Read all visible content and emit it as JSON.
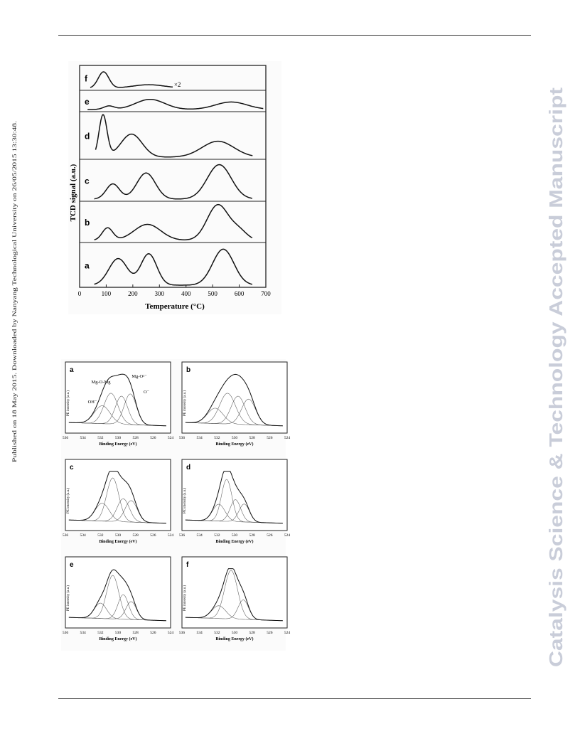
{
  "side_note": "Published on 18 May 2015. Downloaded by Nanyang Technological University on 26/05/2015 13:30:48.",
  "watermark": "Catalysis Science & Technology Accepted Manuscript",
  "watermark_color": "#c9cdd9",
  "figure_tpr": {
    "chart_data": {
      "type": "line",
      "xlabel": "Temperature (°C)",
      "ylabel": "TCD signal (a.u.)",
      "xlim": [
        0,
        700
      ],
      "xticks": [
        "0",
        "100",
        "200",
        "300",
        "400",
        "500",
        "600",
        "700"
      ],
      "panel_labels": [
        "f",
        "e",
        "d",
        "c",
        "b",
        "a"
      ],
      "annotation": "×2",
      "series": [
        {
          "name": "f",
          "peaks": [
            [
              90,
              0.85,
              20
            ],
            [
              260,
              0.18,
              60
            ]
          ],
          "range": [
            40,
            350
          ]
        },
        {
          "name": "e",
          "peaks": [
            [
              110,
              0.22,
              20
            ],
            [
              265,
              0.65,
              55
            ],
            [
              570,
              0.48,
              60
            ]
          ],
          "range": [
            30,
            690
          ]
        },
        {
          "name": "d",
          "peaks": [
            [
              88,
              1.0,
              15
            ],
            [
              195,
              0.55,
              40
            ],
            [
              520,
              0.38,
              60
            ]
          ],
          "range": [
            60,
            650
          ]
        },
        {
          "name": "c",
          "peaks": [
            [
              125,
              0.42,
              25
            ],
            [
              250,
              0.72,
              35
            ],
            [
              525,
              0.95,
              45
            ]
          ],
          "range": [
            55,
            650
          ]
        },
        {
          "name": "b",
          "peaks": [
            [
              105,
              0.35,
              20
            ],
            [
              255,
              0.45,
              50
            ],
            [
              520,
              1.0,
              40
            ],
            [
              600,
              0.25,
              30
            ]
          ],
          "range": [
            55,
            650
          ]
        },
        {
          "name": "a",
          "peaks": [
            [
              145,
              0.68,
              35
            ],
            [
              260,
              0.8,
              30
            ],
            [
              540,
              0.92,
              40
            ]
          ],
          "range": [
            55,
            650
          ]
        }
      ]
    }
  },
  "figure_xps": {
    "chart_data": [
      {
        "type": "line",
        "panel": "a",
        "xlabel": "Binding Energy (eV)",
        "ylabel": "PE intensity (a.u.)",
        "xticks": [
          "536",
          "534",
          "532",
          "530",
          "528",
          "526",
          "524"
        ],
        "annotations": [
          "Mg-O-Mg",
          "Mg-O²⁻",
          "OH⁻",
          "O⁻"
        ]
      },
      {
        "type": "line",
        "panel": "b",
        "xlabel": "Binding Energy (eV)",
        "ylabel": "PE intensity (a.u.)",
        "xticks": [
          "536",
          "534",
          "532",
          "530",
          "528",
          "526",
          "524"
        ]
      },
      {
        "type": "line",
        "panel": "c",
        "xlabel": "Binding Energy (eV)",
        "ylabel": "PE intensity (a.u.)",
        "xticks": [
          "536",
          "534",
          "532",
          "530",
          "528",
          "526",
          "524"
        ]
      },
      {
        "type": "line",
        "panel": "d",
        "xlabel": "Binding Energy (eV)",
        "ylabel": "PE intensity (a.u.)",
        "xticks": [
          "536",
          "534",
          "532",
          "530",
          "528",
          "526",
          "524"
        ]
      },
      {
        "type": "line",
        "panel": "e",
        "xlabel": "Binding Energy (eV)",
        "ylabel": "PE intensity (a.u.)",
        "xticks": [
          "536",
          "534",
          "532",
          "530",
          "528",
          "526",
          "524"
        ]
      },
      {
        "type": "line",
        "panel": "f",
        "xlabel": "Binding Energy (eV)",
        "ylabel": "PE intensity (a.u.)",
        "xticks": [
          "536",
          "534",
          "532",
          "530",
          "528",
          "526",
          "524"
        ]
      }
    ]
  }
}
